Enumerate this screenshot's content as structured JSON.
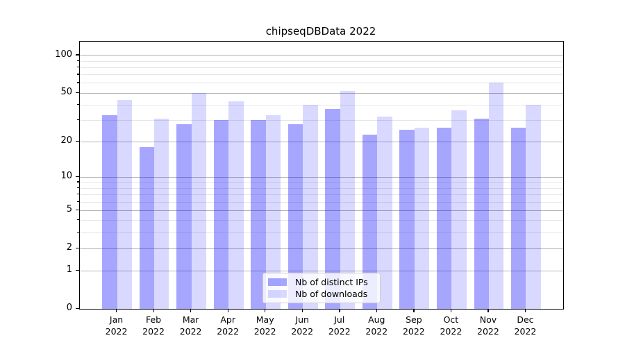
{
  "page": {
    "background": "#ffffff"
  },
  "chart_data": {
    "type": "bar",
    "title": "chipseqDBData 2022",
    "categories": [
      "Jan 2022",
      "Feb 2022",
      "Mar 2022",
      "Apr 2022",
      "May 2022",
      "Jun 2022",
      "Jul 2022",
      "Aug 2022",
      "Sep 2022",
      "Oct 2022",
      "Nov 2022",
      "Dec 2022"
    ],
    "series": [
      {
        "name": "Nb of distinct IPs",
        "color": "rgba(0,0,255,0.35)",
        "hex_on_white": "#a6a6ff",
        "values": [
          33,
          18,
          28,
          30,
          30,
          28,
          37,
          23,
          25,
          26,
          31,
          26
        ]
      },
      {
        "name": "Nb of downloads",
        "color": "rgba(0,0,255,0.15)",
        "hex_on_white": "#d9d9ff",
        "values": [
          44,
          31,
          50,
          43,
          33,
          40,
          52,
          32,
          26,
          36,
          61,
          40
        ]
      }
    ],
    "xlabel": "",
    "ylabel": "",
    "yscale": "log1p",
    "ylim": [
      0,
      129
    ],
    "yticks": [
      0,
      1,
      2,
      5,
      10,
      20,
      50,
      100
    ],
    "minor_gridlines": [
      3,
      4,
      6,
      7,
      8,
      9,
      30,
      40,
      60,
      70,
      80,
      90
    ],
    "grid": "on",
    "legend": {
      "position": "lower center",
      "entries": [
        "Nb of distinct IPs",
        "Nb of downloads"
      ]
    },
    "colors": {
      "major_grid": "#b3b3b3",
      "minor_grid": "#e6e6e6",
      "axis": "#000000",
      "text": "#000000"
    }
  }
}
